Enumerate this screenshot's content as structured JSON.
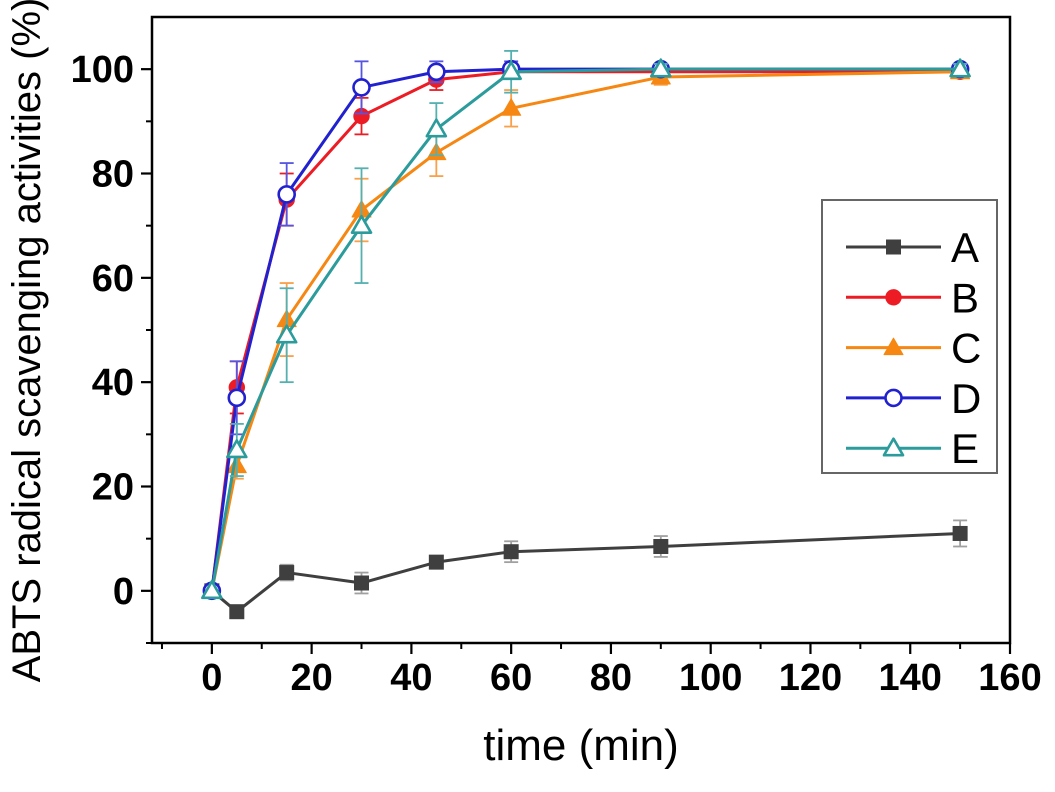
{
  "chart_data": {
    "type": "line",
    "title": "",
    "xlabel": "time (min)",
    "ylabel": "ABTS radical scavenging activities (%)",
    "x": [
      0,
      5,
      15,
      30,
      45,
      60,
      90,
      150
    ],
    "xlim": [
      -12,
      160
    ],
    "ylim": [
      -10,
      110
    ],
    "x_major_ticks": [
      0,
      20,
      40,
      60,
      80,
      100,
      120,
      140,
      160
    ],
    "x_minor_ticks": [
      -10,
      10,
      30,
      50,
      70,
      90,
      110,
      130,
      150
    ],
    "y_major_ticks": [
      0,
      20,
      40,
      60,
      80,
      100
    ],
    "y_minor_ticks": [
      -10,
      10,
      30,
      50,
      70,
      90
    ],
    "grid": false,
    "error_bars": true,
    "legend_position": "right-middle-framed-box",
    "axis_color": "#000000",
    "series": [
      {
        "name": "A",
        "color": "#3f3f3f",
        "error_color": "#a0a0a0",
        "marker": "filled-square",
        "values": [
          0,
          -4,
          3.5,
          1.5,
          5.5,
          7.5,
          8.5,
          11
        ],
        "errors": [
          0.5,
          1,
          1.5,
          2,
          1,
          2,
          2,
          2.5
        ]
      },
      {
        "name": "B",
        "color": "#ed1c24",
        "error_color": "#ed1c24",
        "marker": "filled-circle",
        "values": [
          0,
          39,
          75,
          91,
          98,
          99.5,
          99.5,
          99.5
        ],
        "errors": [
          0.5,
          5,
          5,
          3.5,
          2,
          1,
          1,
          1
        ]
      },
      {
        "name": "C",
        "color": "#f68712",
        "error_color": "#f9a048",
        "marker": "filled-triangle",
        "values": [
          0,
          24,
          52,
          73,
          84,
          92.5,
          98.5,
          99.5
        ],
        "errors": [
          0.5,
          2.5,
          7,
          6,
          4.5,
          3.5,
          1.5,
          1
        ]
      },
      {
        "name": "D",
        "color": "#2121cf",
        "error_color": "#5555e0",
        "marker": "open-circle",
        "values": [
          0,
          37,
          76,
          96.5,
          99.5,
          100,
          100,
          100
        ],
        "errors": [
          0.5,
          7,
          6,
          5,
          2,
          1.5,
          1,
          1
        ]
      },
      {
        "name": "E",
        "color": "#2b9b9b",
        "error_color": "#55b0b0",
        "marker": "open-triangle",
        "values": [
          0,
          27,
          49,
          70,
          88.5,
          99.5,
          100,
          100
        ],
        "errors": [
          0.5,
          5,
          9,
          11,
          5,
          4,
          1,
          1
        ]
      }
    ]
  }
}
